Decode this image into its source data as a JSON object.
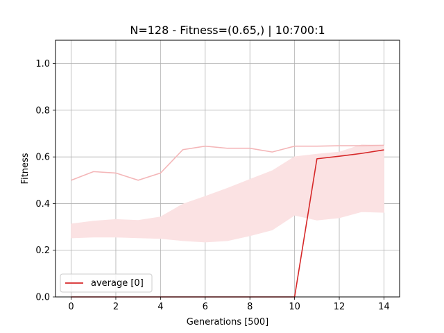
{
  "chart_data": {
    "type": "line",
    "title": "N=128  - Fitness=(0.65,) | 10:700:1",
    "xlabel": "Generations [500]",
    "ylabel": "Fitness",
    "xlim": [
      -0.7,
      14.7
    ],
    "ylim": [
      0.0,
      1.1
    ],
    "xticks": [
      0,
      2,
      4,
      6,
      8,
      10,
      12,
      14
    ],
    "yticks": [
      0.0,
      0.2,
      0.4,
      0.6,
      0.8,
      1.0
    ],
    "xtick_labels": [
      "0",
      "2",
      "4",
      "6",
      "8",
      "10",
      "12",
      "14"
    ],
    "ytick_labels": [
      "0.0",
      "0.2",
      "0.4",
      "0.6",
      "0.8",
      "1.0"
    ],
    "grid": true,
    "legend_position": "lower-left",
    "x": [
      0,
      1,
      2,
      3,
      4,
      5,
      6,
      7,
      8,
      9,
      10,
      11,
      12,
      13,
      14
    ],
    "series": [
      {
        "name": "average [0]",
        "color": "#d62728",
        "values": [
          0,
          0,
          0,
          0,
          0,
          0,
          0,
          0,
          0,
          0,
          0,
          0.592,
          0.603,
          0.615,
          0.63
        ]
      }
    ],
    "max_line": {
      "color": "#f4b6b8",
      "values": [
        0.5,
        0.537,
        0.531,
        0.5,
        0.531,
        0.631,
        0.646,
        0.637,
        0.637,
        0.621,
        0.646,
        0.646,
        0.648,
        0.648,
        0.65
      ]
    },
    "band": {
      "color": "#fbe2e3",
      "upper": [
        0.313,
        0.325,
        0.332,
        0.328,
        0.343,
        0.398,
        0.431,
        0.466,
        0.504,
        0.541,
        0.601,
        0.612,
        0.621,
        0.652,
        0.65
      ],
      "lower": [
        0.253,
        0.256,
        0.256,
        0.253,
        0.25,
        0.241,
        0.235,
        0.241,
        0.262,
        0.287,
        0.35,
        0.329,
        0.339,
        0.365,
        0.362
      ]
    }
  }
}
